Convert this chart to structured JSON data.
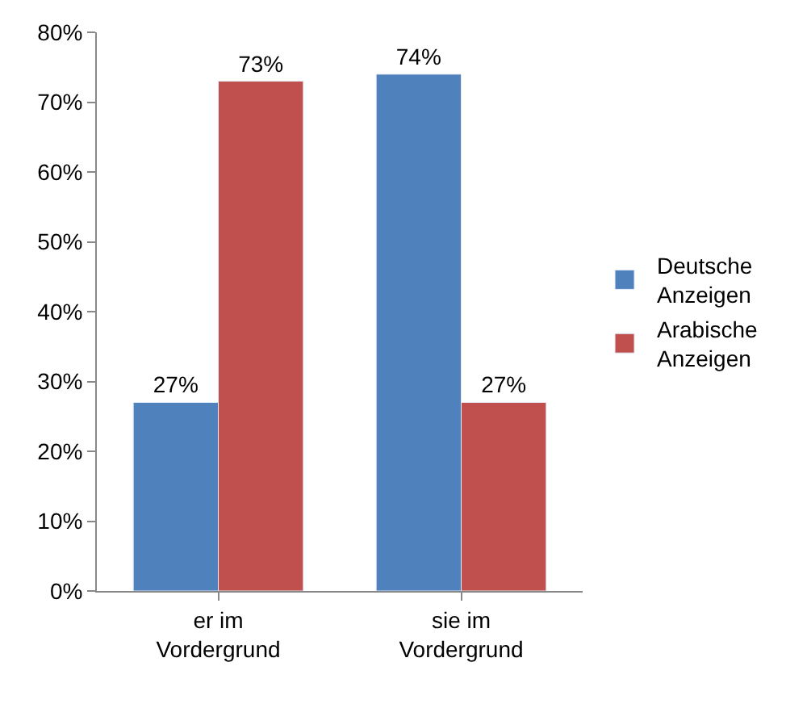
{
  "chart_data": {
    "type": "bar",
    "categories": [
      "er im\nVordergrund",
      "sie im\nVordergrund"
    ],
    "series": [
      {
        "name": "Deutsche\nAnzeigen",
        "color": "#4f81bd",
        "values": [
          27,
          74
        ],
        "value_labels": [
          "27%",
          "74%"
        ]
      },
      {
        "name": "Arabische\nAnzeigen",
        "color": "#c0504d",
        "values": [
          73,
          27
        ],
        "value_labels": [
          "73%",
          "27%"
        ]
      }
    ],
    "ylim": [
      0,
      80
    ],
    "yticks": [
      {
        "value": 0,
        "label": "0%"
      },
      {
        "value": 10,
        "label": "10%"
      },
      {
        "value": 20,
        "label": "20%"
      },
      {
        "value": 30,
        "label": "30%"
      },
      {
        "value": 40,
        "label": "40%"
      },
      {
        "value": 50,
        "label": "50%"
      },
      {
        "value": 60,
        "label": "60%"
      },
      {
        "value": 70,
        "label": "70%"
      },
      {
        "value": 80,
        "label": "80%"
      }
    ],
    "legend": "right"
  }
}
